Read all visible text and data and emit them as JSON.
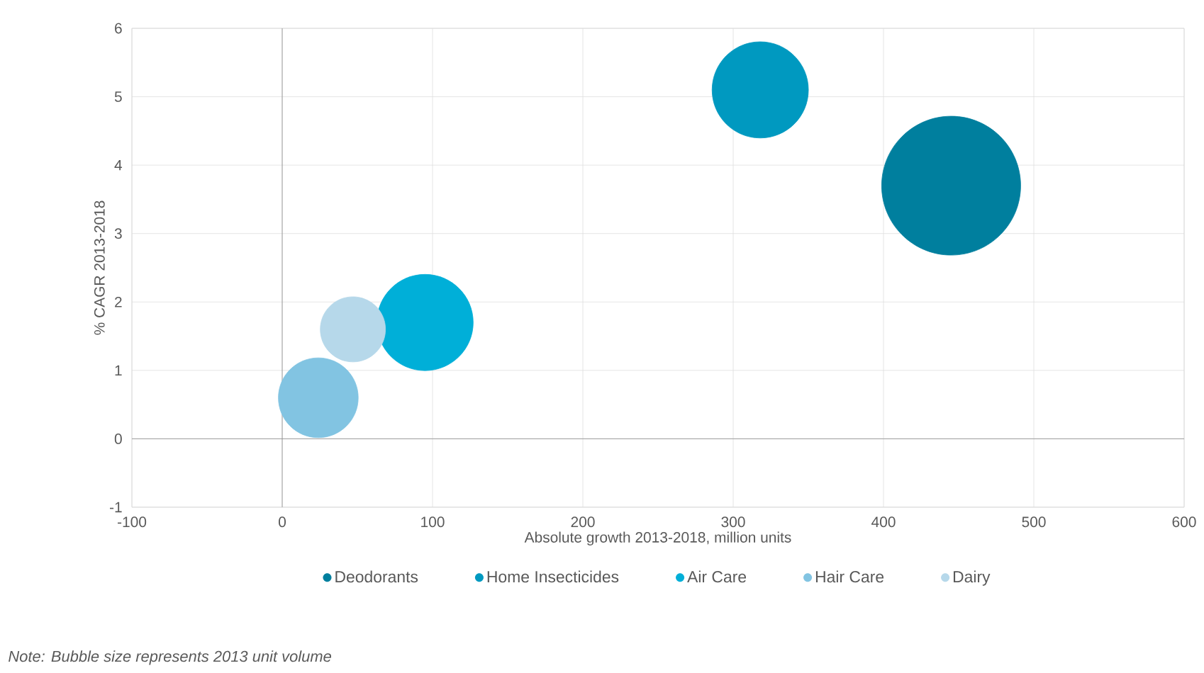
{
  "chart_data": {
    "type": "bubble",
    "xlabel": "Absolute growth 2013-2018, million units",
    "ylabel": "% CAGR 2013-2018",
    "xlim": [
      -100,
      600
    ],
    "xticks": [
      -100,
      0,
      100,
      200,
      300,
      400,
      500,
      600
    ],
    "ylim": [
      -1,
      6
    ],
    "yticks": [
      -1,
      0,
      1,
      2,
      3,
      4,
      5,
      6
    ],
    "grid": true,
    "legend": "bottom",
    "series": [
      {
        "name": "Deodorants",
        "color": "#007f9e",
        "x": [
          445
        ],
        "values": [
          3.7
        ],
        "sizes": [
          1
        ]
      },
      {
        "name": "Home Insecticides",
        "color": "#0099c0",
        "x": [
          318
        ],
        "values": [
          5.1
        ],
        "sizes": [
          0.48
        ]
      },
      {
        "name": "Air Care",
        "color": "#00afd8",
        "x": [
          95
        ],
        "values": [
          1.7
        ],
        "sizes": [
          0.48
        ]
      },
      {
        "name": "Hair Care",
        "color": "#82c4e2",
        "x": [
          24
        ],
        "values": [
          0.6
        ],
        "sizes": [
          0.33
        ]
      },
      {
        "name": "Dairy",
        "color": "#b6d8ea",
        "x": [
          47
        ],
        "values": [
          1.6
        ],
        "sizes": [
          0.22
        ]
      }
    ],
    "annotations": [
      "Note: Bubble size represents 2013 unit volume"
    ]
  }
}
